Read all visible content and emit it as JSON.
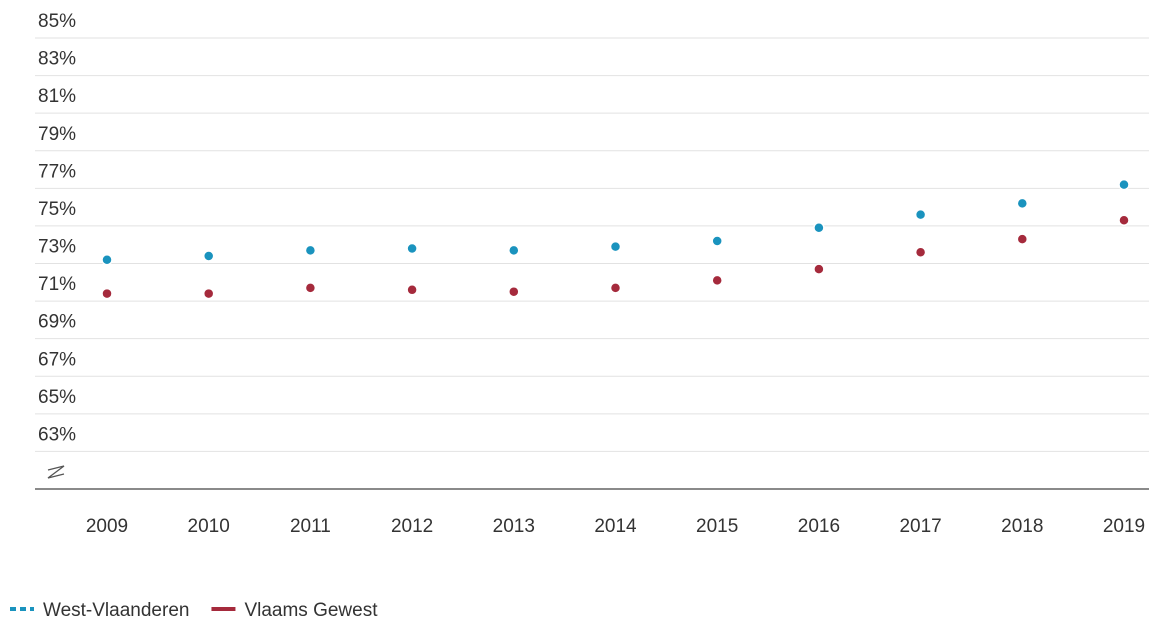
{
  "chart_data": {
    "type": "line",
    "categories": [
      "2009",
      "2010",
      "2011",
      "2012",
      "2013",
      "2014",
      "2015",
      "2016",
      "2017",
      "2018",
      "2019"
    ],
    "series": [
      {
        "name": "West-Vlaanderen",
        "color": "#1a93be",
        "dash": true,
        "values": [
          73.2,
          73.4,
          73.7,
          73.8,
          73.7,
          73.9,
          74.2,
          74.9,
          75.6,
          76.2,
          77.2
        ]
      },
      {
        "name": "Vlaams Gewest",
        "color": "#a52a3c",
        "dash": false,
        "values": [
          71.4,
          71.4,
          71.7,
          71.6,
          71.5,
          71.7,
          72.1,
          72.7,
          73.6,
          74.3,
          75.3
        ]
      }
    ],
    "ylim": [
      61,
      85
    ],
    "yticks": [
      {
        "value": 63,
        "label": "63%"
      },
      {
        "value": 65,
        "label": "65%"
      },
      {
        "value": 67,
        "label": "67%"
      },
      {
        "value": 69,
        "label": "69%"
      },
      {
        "value": 71,
        "label": "71%"
      },
      {
        "value": 73,
        "label": "73%"
      },
      {
        "value": 75,
        "label": "75%"
      },
      {
        "value": 77,
        "label": "77%"
      },
      {
        "value": 79,
        "label": "79%"
      },
      {
        "value": 81,
        "label": "81%"
      },
      {
        "value": 83,
        "label": "83%"
      },
      {
        "value": 85,
        "label": "85%"
      }
    ],
    "grid": true,
    "legend": "bottom-left"
  }
}
